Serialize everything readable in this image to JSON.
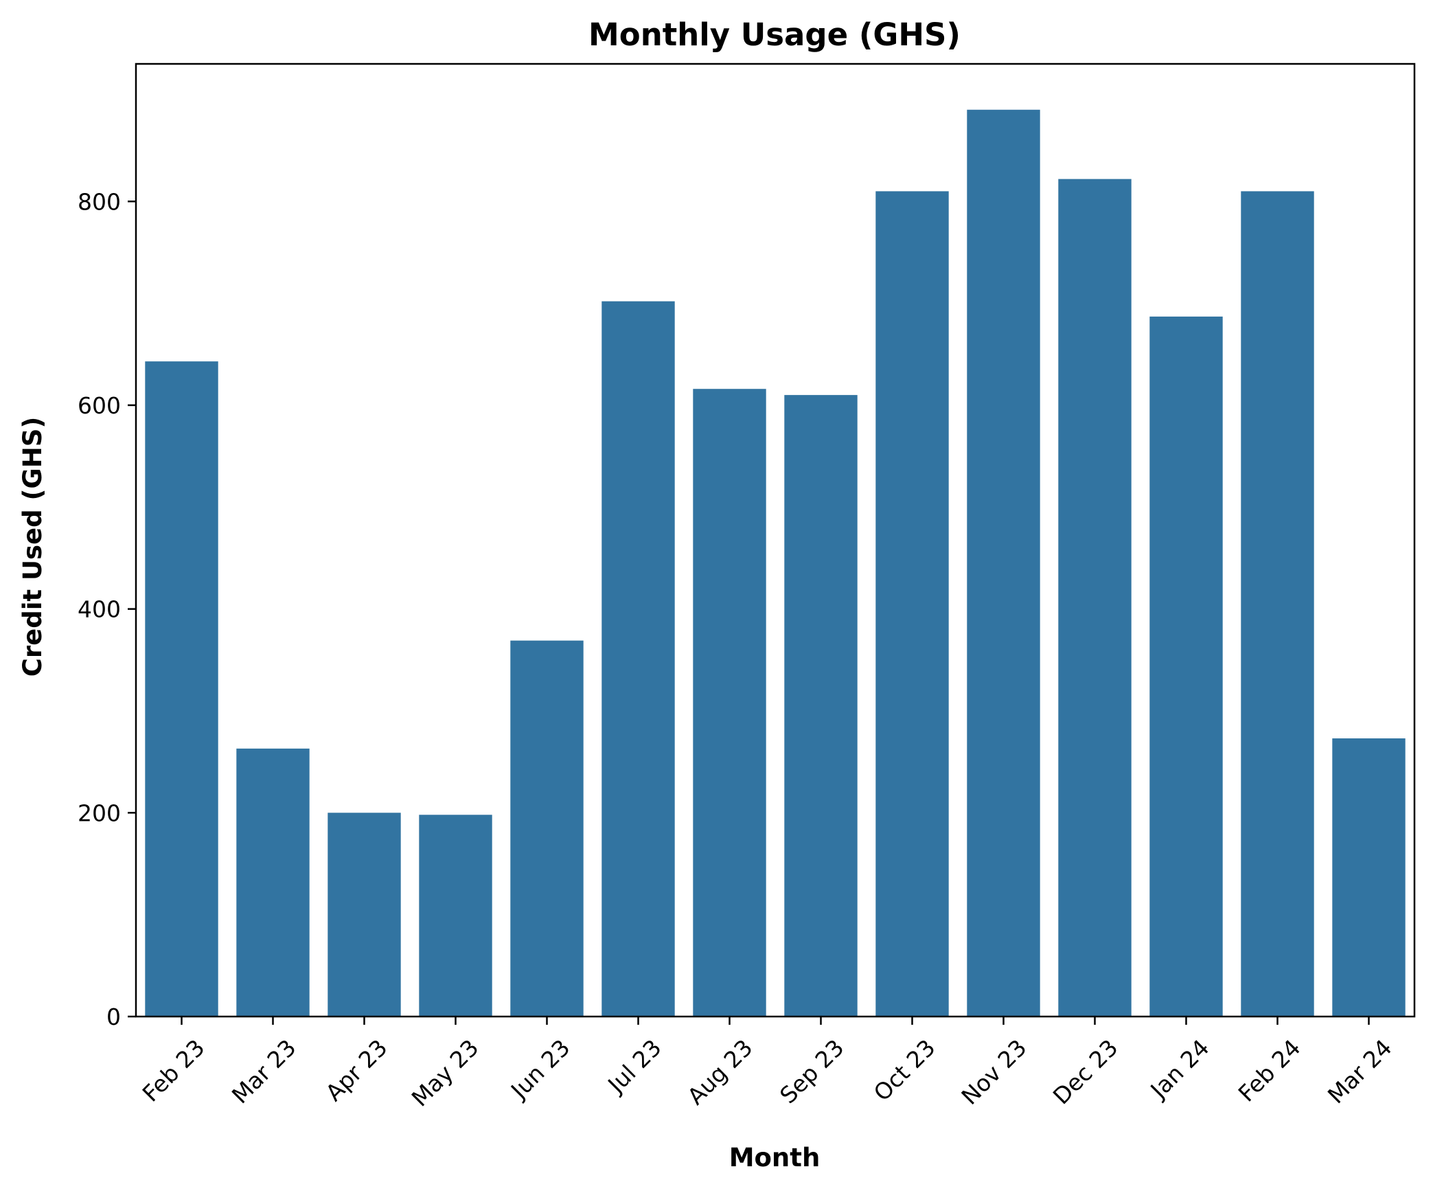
{
  "chart_data": {
    "type": "bar",
    "title": "Monthly Usage (GHS)",
    "xlabel": "Month",
    "ylabel": "Credit Used (GHS)",
    "categories": [
      "Feb 23",
      "Mar 23",
      "Apr 23",
      "May 23",
      "Jun 23",
      "Jul 23",
      "Aug 23",
      "Sep 23",
      "Oct 23",
      "Nov 23",
      "Dec 23",
      "Jan 24",
      "Feb 24",
      "Mar 24"
    ],
    "values": [
      643,
      263,
      200,
      198,
      369,
      702,
      616,
      610,
      810,
      890,
      822,
      687,
      810,
      273
    ],
    "ylim": [
      0,
      935
    ],
    "yticks": [
      0,
      200,
      400,
      600,
      800
    ],
    "ytick_labels": [
      "0",
      "200",
      "400",
      "600",
      "800"
    ],
    "bar_color": "#3274a1",
    "grid": false,
    "legend": "none"
  }
}
